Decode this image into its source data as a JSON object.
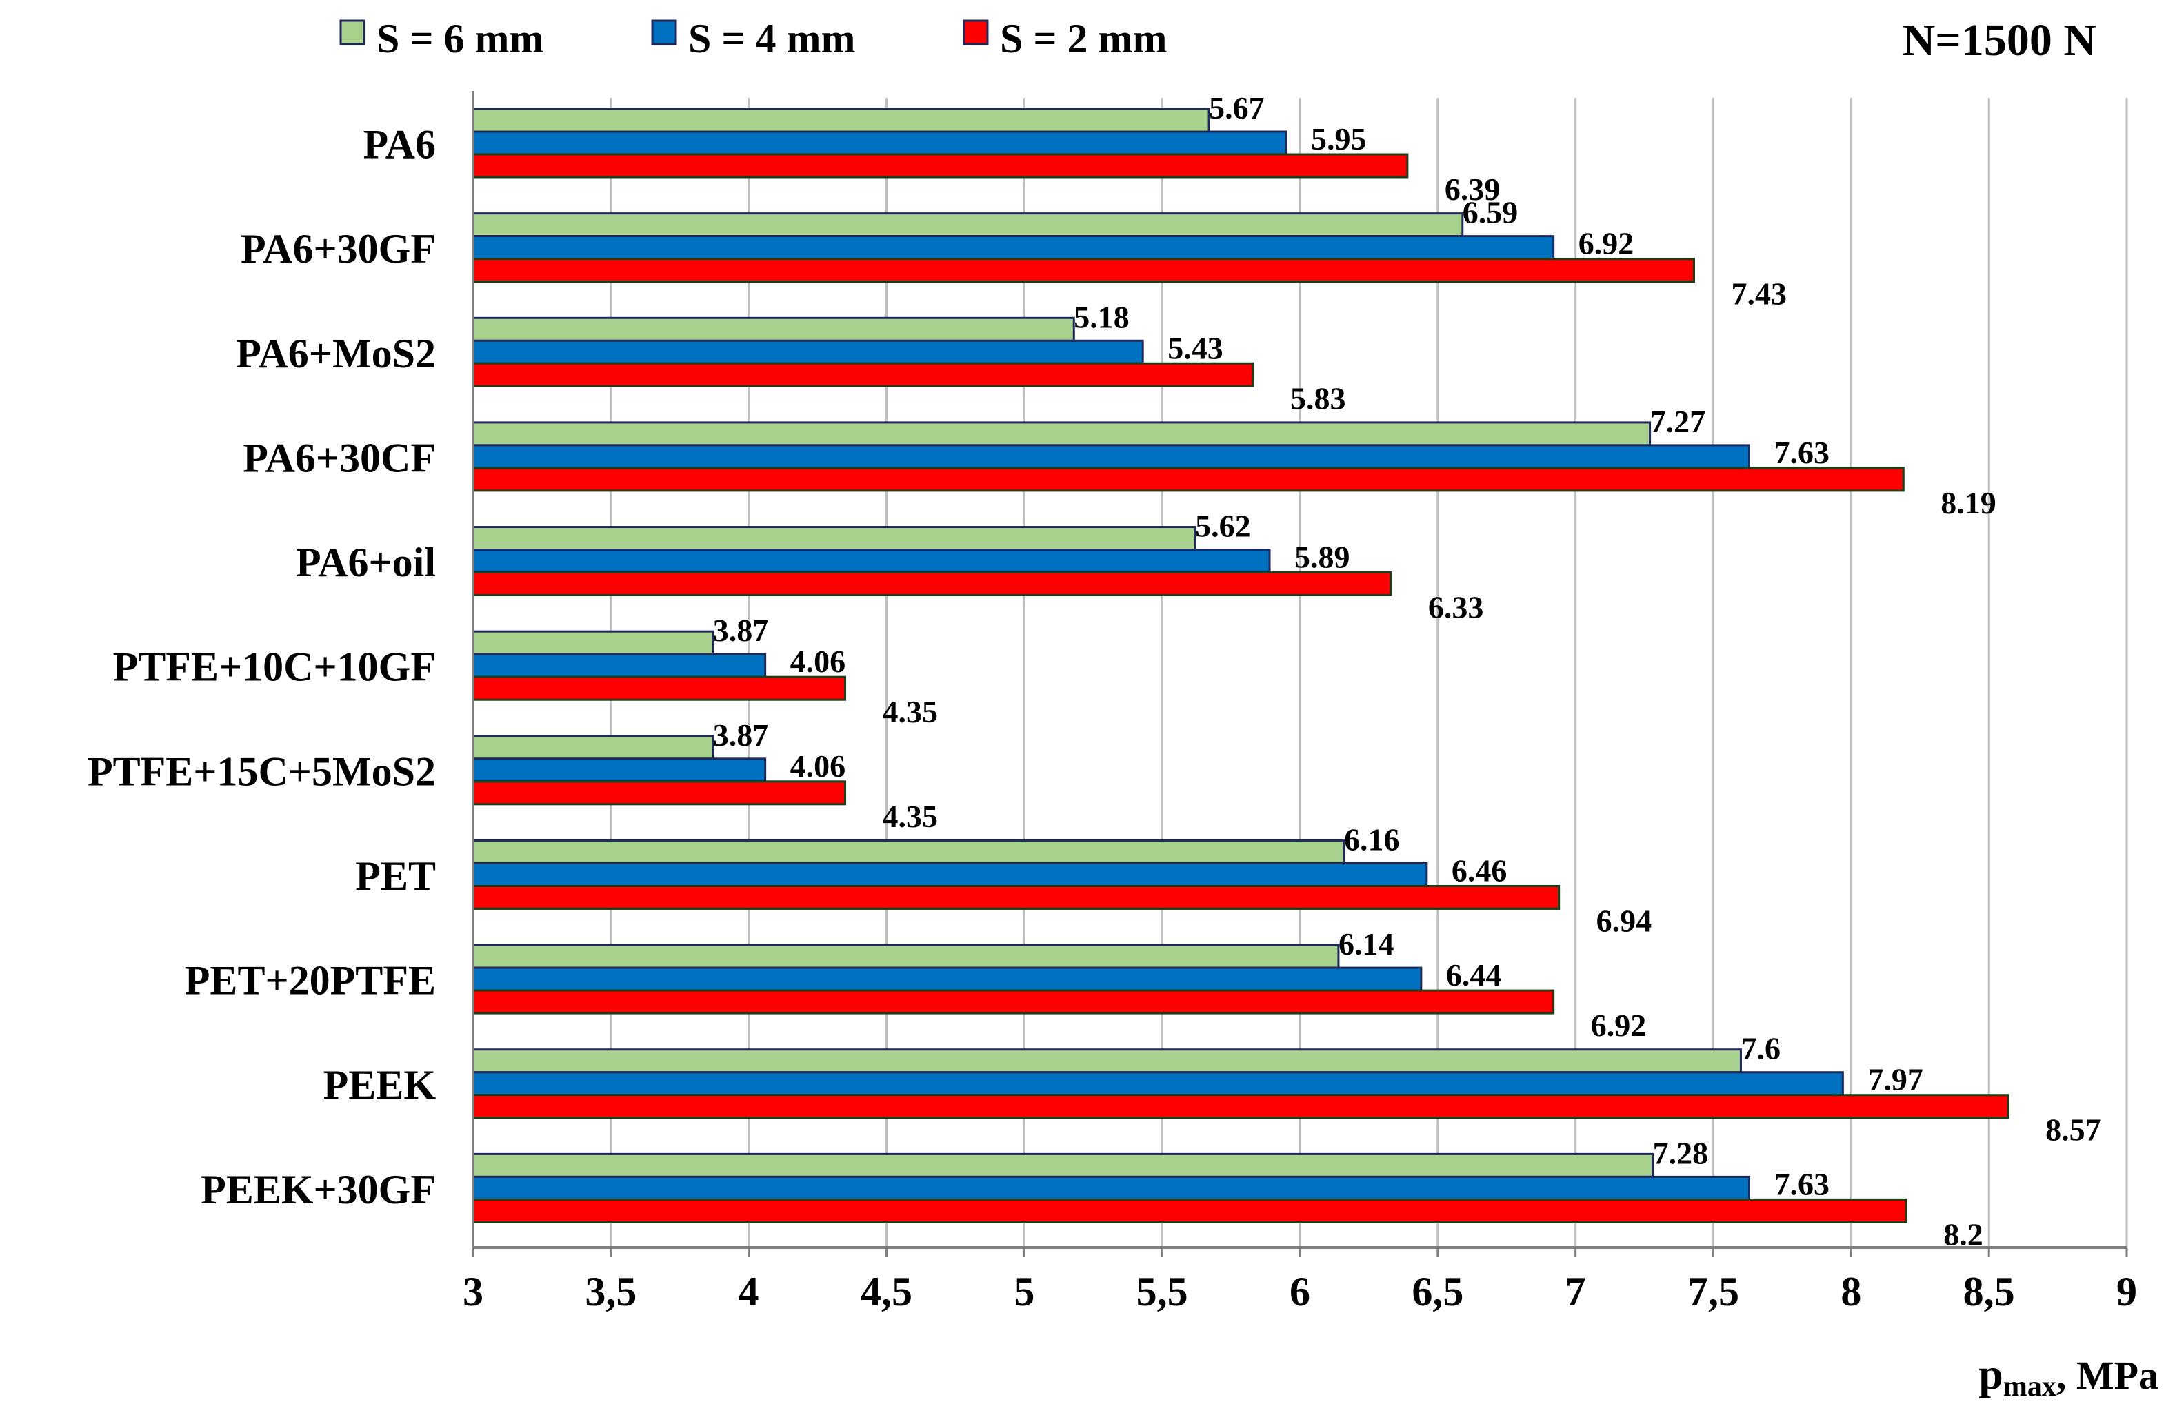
{
  "chart_data": {
    "type": "bar",
    "orientation": "horizontal",
    "annotation": "N=1500 N",
    "xlabel_main": "p",
    "xlabel_sub": "max",
    "xlabel_unit": ", MPa",
    "xlim": [
      3,
      9
    ],
    "xtick_values": [
      3,
      3.5,
      4,
      4.5,
      5,
      5.5,
      6,
      6.5,
      7,
      7.5,
      8,
      8.5,
      9
    ],
    "xtick_labels": [
      "3",
      "3,5",
      "4",
      "4,5",
      "5",
      "5,5",
      "6",
      "6,5",
      "7",
      "7,5",
      "8",
      "8,5",
      "9"
    ],
    "grid": "vertical",
    "legend_position": "top",
    "categories": [
      "PA6",
      "PA6+30GF",
      "PA6+MoS2",
      "PA6+30CF",
      "PA6+oil",
      "PTFE+10C+10GF",
      "PTFE+15C+5MoS2",
      "PET",
      "PET+20PTFE",
      "PEEK",
      "PEEK+30GF"
    ],
    "series": [
      {
        "name": "S = 6 mm",
        "color": "#a9d18e",
        "values": [
          5.67,
          6.59,
          5.18,
          7.27,
          5.62,
          3.87,
          3.87,
          6.16,
          6.14,
          7.6,
          7.28
        ]
      },
      {
        "name": "S = 4 mm",
        "color": "#0070c0",
        "values": [
          5.95,
          6.92,
          5.43,
          7.63,
          5.89,
          4.06,
          4.06,
          6.46,
          6.44,
          7.97,
          7.63
        ]
      },
      {
        "name": "S = 2 mm",
        "color": "#ff0000",
        "values": [
          6.39,
          7.43,
          5.83,
          8.19,
          6.33,
          4.35,
          4.35,
          6.94,
          6.92,
          8.57,
          8.2
        ]
      }
    ]
  }
}
